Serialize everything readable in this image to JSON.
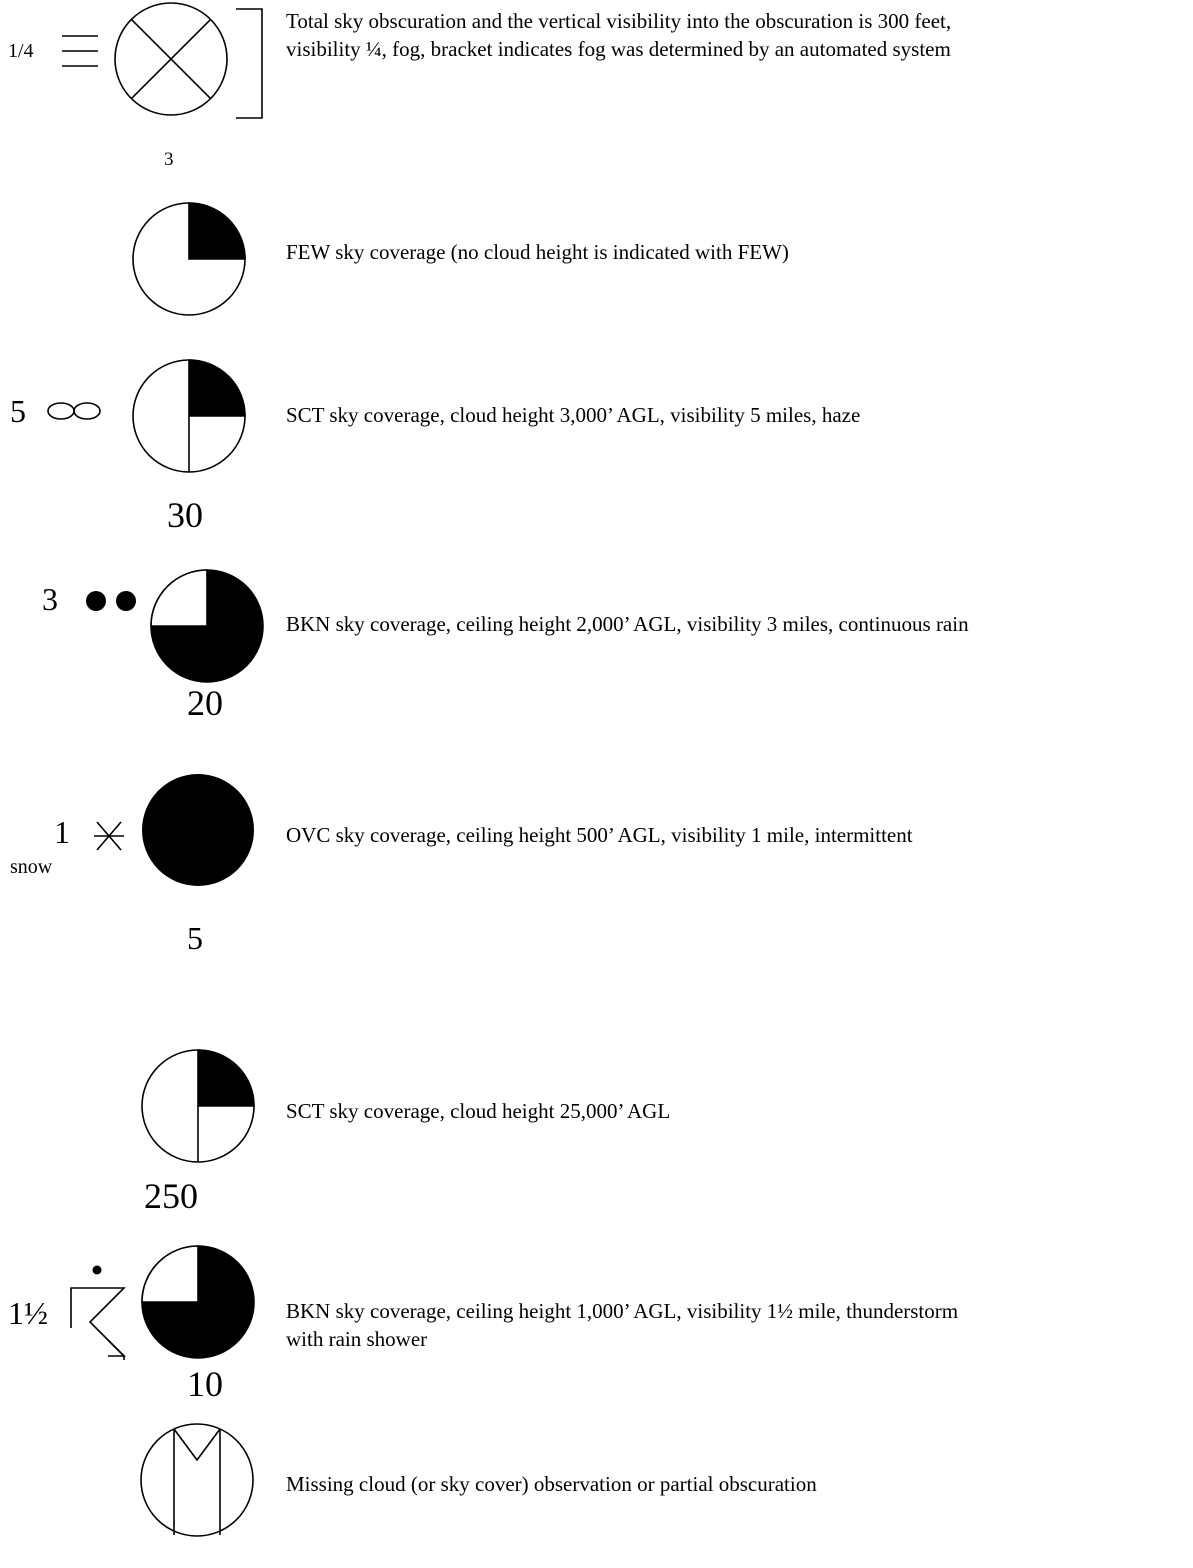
{
  "entries": [
    {
      "symbol": "obscured",
      "visibility": "1/4",
      "weather": "fog",
      "height": "3",
      "description_lines": [
        "Total sky obscuration and the vertical visibility into the obscuration is 300 feet,",
        "visibility ¼, fog, bracket indicates fog was determined by an automated system"
      ]
    },
    {
      "symbol": "few",
      "description_lines": [
        "FEW sky coverage (no cloud height is indicated with FEW)"
      ]
    },
    {
      "symbol": "scattered",
      "visibility": "5",
      "weather": "haze",
      "height": "30",
      "description_lines": [
        "SCT sky coverage, cloud height 3,000’ AGL, visibility 5 miles, haze"
      ]
    },
    {
      "symbol": "broken",
      "visibility": "3",
      "weather": "continuous-rain",
      "height": "20",
      "description_lines": [
        "BKN sky coverage, ceiling height 2,000’ AGL, visibility 3 miles, continuous rain"
      ]
    },
    {
      "symbol": "overcast",
      "visibility": "1",
      "weather": "intermittent-snow",
      "weather_text": "snow",
      "height": "5",
      "description_lines": [
        "OVC sky coverage, ceiling height 500’ AGL, visibility 1 mile, intermittent"
      ]
    },
    {
      "symbol": "scattered",
      "height": "250",
      "description_lines": [
        "SCT sky coverage, cloud height 25,000’ AGL"
      ]
    },
    {
      "symbol": "broken",
      "visibility": "1½",
      "weather": "thunderstorm-rain-shower",
      "height": "10",
      "description_lines": [
        "BKN sky coverage, ceiling height 1,000’ AGL, visibility 1½ mile, thunderstorm",
        "with rain shower"
      ]
    },
    {
      "symbol": "missing",
      "description_lines": [
        "Missing cloud (or sky cover) observation or partial obscuration"
      ]
    }
  ]
}
